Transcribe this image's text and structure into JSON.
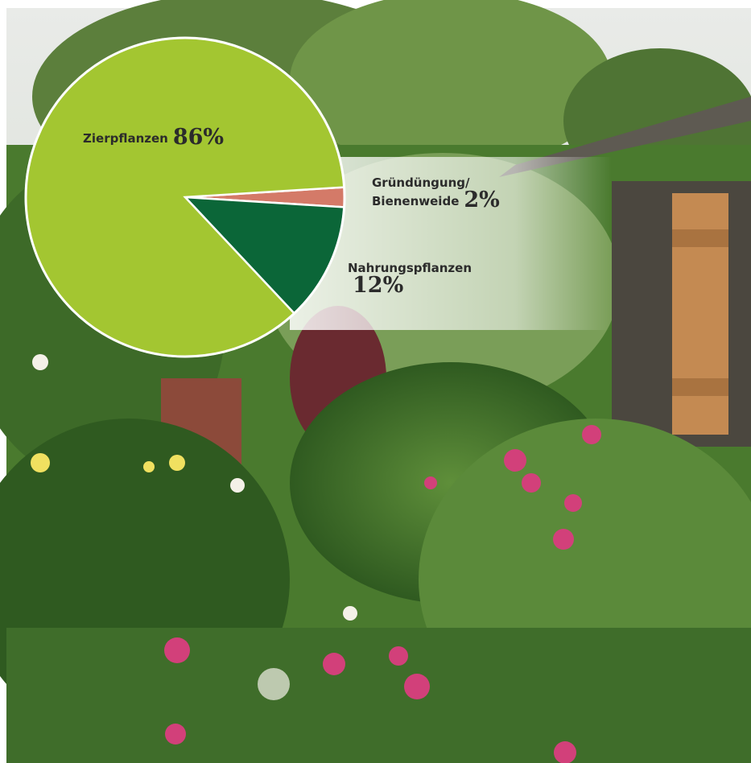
{
  "chart_data": {
    "type": "pie",
    "categories": [
      "Gründüngung/ Bienenweide",
      "Nahrungspflanzen",
      "Zierpflanzen"
    ],
    "values": [
      2,
      12,
      86
    ],
    "value_labels": [
      "2%",
      "12%",
      "86%"
    ],
    "colors": [
      "#d47a68",
      "#0b6638",
      "#a3c631"
    ]
  }
}
